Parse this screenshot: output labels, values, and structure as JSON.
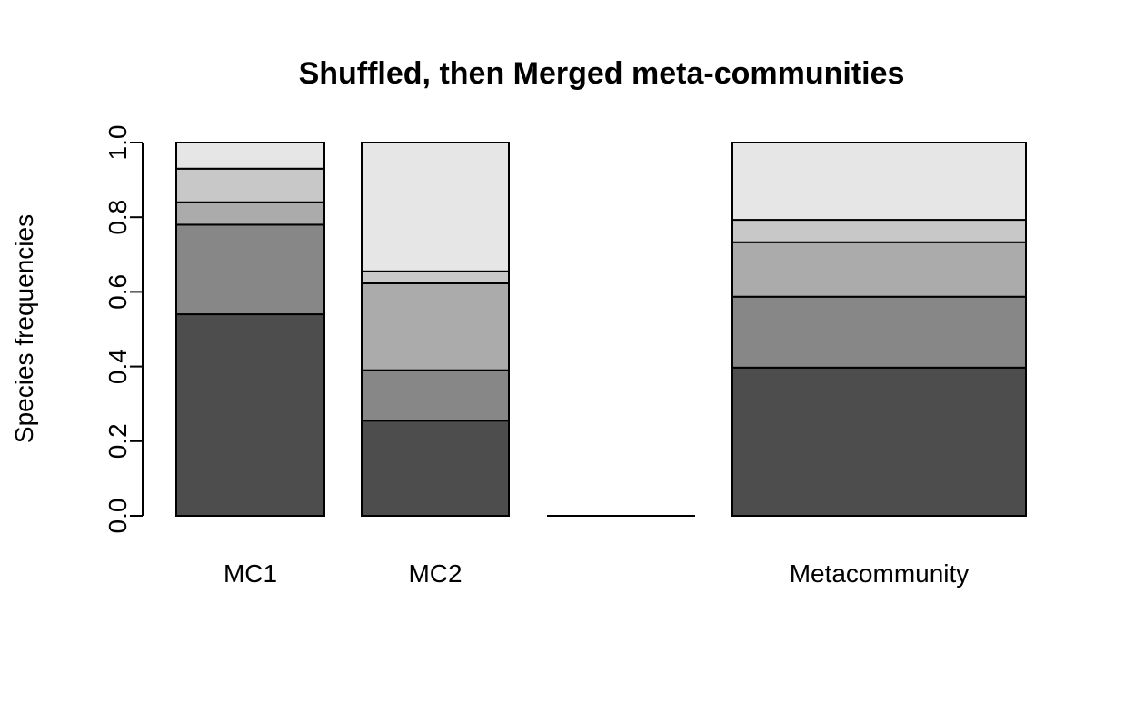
{
  "chart_data": {
    "type": "bar",
    "stacked": true,
    "title": "Shuffled, then Merged meta-communities",
    "xlabel": "",
    "ylabel": "Species frequencies",
    "ylim": [
      0,
      1
    ],
    "yticks": [
      "0.0",
      "0.2",
      "0.4",
      "0.6",
      "0.8",
      "1.0"
    ],
    "grid": false,
    "legend": "none",
    "categories": [
      "MC1",
      "MC2",
      "",
      "Metacommunity"
    ],
    "category_labels": [
      "MC1",
      "MC2",
      "Metacommunity"
    ],
    "series_colors": [
      "#4d4d4d",
      "#878787",
      "#ababab",
      "#c8c8c8",
      "#e6e6e6"
    ],
    "series": [
      {
        "values": [
          0.54,
          0.255,
          0,
          0.397
        ]
      },
      {
        "values": [
          0.24,
          0.135,
          0,
          0.19
        ]
      },
      {
        "values": [
          0.06,
          0.233,
          0,
          0.146
        ]
      },
      {
        "values": [
          0.09,
          0.032,
          0,
          0.06
        ]
      },
      {
        "values": [
          0.07,
          0.345,
          0,
          0.207
        ]
      }
    ]
  }
}
